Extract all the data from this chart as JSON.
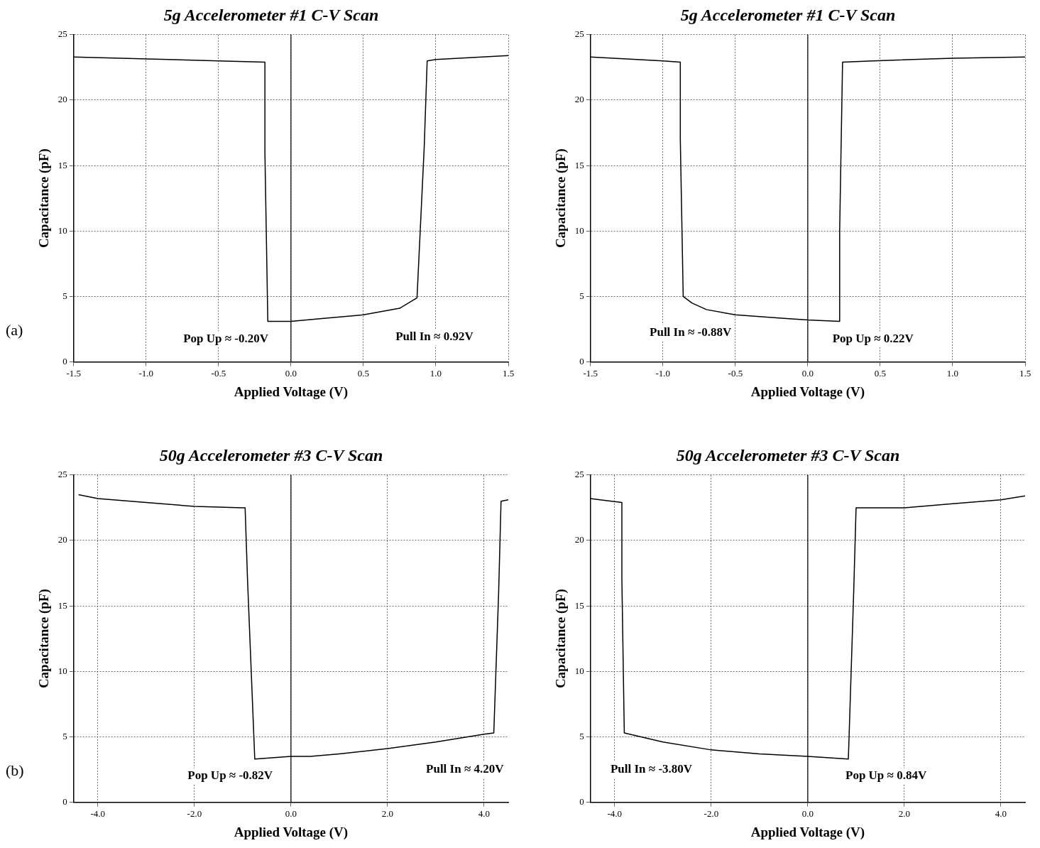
{
  "chart_data": [
    {
      "type": "line",
      "title": "5g Accelerometer #1 C-V Scan",
      "xlabel": "Applied Voltage (V)",
      "ylabel": "Capacitance (pF)",
      "xlim": [
        -1.5,
        1.5
      ],
      "xticks": [
        -1.5,
        {
          "value": -1,
          "label": "-1.0"
        },
        -0.5,
        {
          "value": 0,
          "label": "0.0"
        },
        0.5,
        {
          "value": 1,
          "label": "1.0"
        },
        1.5
      ],
      "ylim": [
        0,
        25
      ],
      "yticks": [
        0,
        5,
        10,
        15,
        20,
        25
      ],
      "grid": true,
      "marker": "none",
      "line_style": "solid",
      "ref_lines": [
        {
          "axis": "x",
          "value": 0
        }
      ],
      "annotations": [
        "(a)",
        "Pop Up ≈ -0.20V",
        "Pull In ≈ 0.92V"
      ],
      "series": [
        {
          "color": "#000000",
          "x": [
            -1.5,
            -0.5,
            -0.18,
            -0.18,
            -0.16,
            0.0,
            0.2,
            0.5,
            0.75,
            0.87,
            0.92,
            0.94,
            1.0,
            1.5
          ],
          "values": [
            23.3,
            23.0,
            22.9,
            16,
            3.1,
            3.1,
            3.3,
            3.6,
            4.1,
            4.9,
            16.5,
            23.0,
            23.1,
            23.4
          ]
        }
      ]
    },
    {
      "type": "line",
      "title": "5g Accelerometer #1 C-V Scan",
      "xlabel": "Applied Voltage (V)",
      "ylabel": "Capacitance (pF)",
      "xlim": [
        -1.5,
        1.5
      ],
      "xticks": [
        -1.5,
        {
          "value": -1,
          "label": "-1.0"
        },
        -0.5,
        {
          "value": 0,
          "label": "0.0"
        },
        0.5,
        {
          "value": 1,
          "label": "1.0"
        },
        1.5
      ],
      "ylim": [
        0,
        25
      ],
      "yticks": [
        0,
        5,
        10,
        15,
        20,
        25
      ],
      "grid": true,
      "marker": "none",
      "line_style": "solid",
      "ref_lines": [
        {
          "axis": "x",
          "value": 0
        }
      ],
      "annotations": [
        "Pull In ≈ -0.88V",
        "Pop Up ≈ 0.22V"
      ],
      "series": [
        {
          "color": "#000000",
          "x": [
            1.5,
            1.0,
            0.45,
            0.24,
            0.22,
            0.22,
            0.0,
            -0.2,
            -0.5,
            -0.7,
            -0.8,
            -0.86,
            -0.88,
            -0.88,
            -1.0,
            -1.5
          ],
          "values": [
            23.3,
            23.2,
            23.0,
            22.9,
            10,
            3.1,
            3.2,
            3.35,
            3.6,
            4.0,
            4.5,
            5.0,
            17,
            22.9,
            23.0,
            23.3
          ]
        }
      ]
    },
    {
      "type": "line",
      "title": "50g Accelerometer #3 C-V Scan",
      "xlabel": "Applied Voltage (V)",
      "ylabel": "Capacitance (pF)",
      "xlim": [
        -4.5,
        4.5
      ],
      "xticks": [
        {
          "value": -4,
          "label": "-4.0"
        },
        {
          "value": -2,
          "label": "-2.0"
        },
        {
          "value": 0,
          "label": "0.0"
        },
        {
          "value": 2,
          "label": "2.0"
        },
        {
          "value": 4,
          "label": "4.0"
        }
      ],
      "ylim": [
        0,
        25
      ],
      "yticks": [
        0,
        5,
        10,
        15,
        20,
        25
      ],
      "grid": true,
      "marker": "none",
      "line_style": "solid",
      "ref_lines": [
        {
          "axis": "x",
          "value": 0
        }
      ],
      "annotations": [
        "(b)",
        "Pop Up ≈ -0.82V",
        "Pull In ≈ 4.20V"
      ],
      "series": [
        {
          "color": "#000000",
          "x": [
            -4.4,
            -4.0,
            -3.0,
            -2.0,
            -1.0,
            -0.95,
            -0.9,
            -0.75,
            0.0,
            0.4,
            1.0,
            2.0,
            3.0,
            4.0,
            4.2,
            4.3,
            4.35,
            4.5
          ],
          "values": [
            23.5,
            23.2,
            22.9,
            22.6,
            22.5,
            22.5,
            17,
            3.3,
            3.5,
            3.5,
            3.7,
            4.1,
            4.6,
            5.2,
            5.3,
            16,
            23.0,
            23.1
          ]
        }
      ]
    },
    {
      "type": "line",
      "title": "50g Accelerometer #3 C-V Scan",
      "xlabel": "Applied Voltage (V)",
      "ylabel": "Capacitance (pF)",
      "xlim": [
        -4.5,
        4.5
      ],
      "xticks": [
        {
          "value": -4,
          "label": "-4.0"
        },
        {
          "value": -2,
          "label": "-2.0"
        },
        {
          "value": 0,
          "label": "0.0"
        },
        {
          "value": 2,
          "label": "2.0"
        },
        {
          "value": 4,
          "label": "4.0"
        }
      ],
      "ylim": [
        0,
        25
      ],
      "yticks": [
        0,
        5,
        10,
        15,
        20,
        25
      ],
      "grid": true,
      "marker": "none",
      "line_style": "solid",
      "ref_lines": [
        {
          "axis": "x",
          "value": 0
        }
      ],
      "annotations": [
        "Pull In ≈ -3.80V",
        "Pop Up ≈ 0.84V"
      ],
      "series": [
        {
          "color": "#000000",
          "x": [
            4.5,
            4.0,
            3.0,
            2.0,
            1.0,
            0.95,
            0.84,
            0.0,
            -1.0,
            -2.0,
            -3.0,
            -3.8,
            -3.85,
            -3.85,
            -4.3,
            -4.5
          ],
          "values": [
            23.4,
            23.1,
            22.8,
            22.5,
            22.5,
            16,
            3.3,
            3.5,
            3.7,
            4.0,
            4.6,
            5.3,
            17,
            22.9,
            23.1,
            23.2
          ]
        }
      ]
    }
  ]
}
